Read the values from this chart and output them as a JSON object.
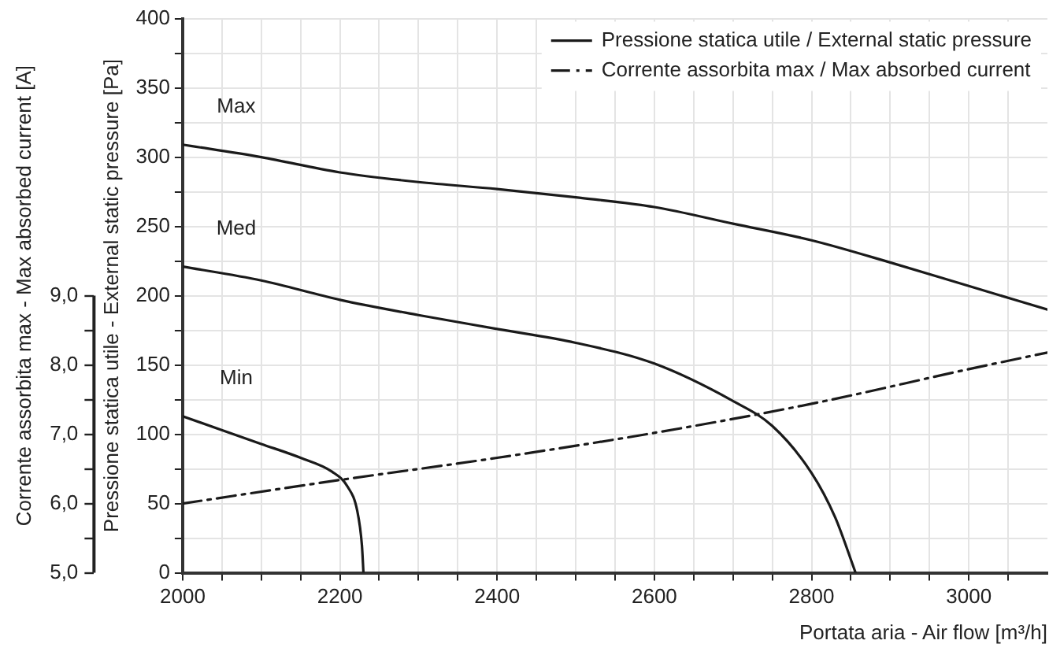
{
  "chart_data": {
    "type": "line",
    "xlabel": "Portata aria - Air flow [m³/h]",
    "ylabel": "Pressione statica utile - External static pressure [Pa]",
    "y2label": "Corrente assorbita max - Max absorbed current [A]",
    "xlim": [
      2000,
      3100
    ],
    "xticks": [
      2000,
      {
        "value": 2050,
        "label": null
      },
      {
        "value": 2100,
        "label": null
      },
      {
        "value": 2150,
        "label": null
      },
      2200,
      {
        "value": 2250,
        "label": null
      },
      {
        "value": 2300,
        "label": null
      },
      {
        "value": 2350,
        "label": null
      },
      2400,
      {
        "value": 2450,
        "label": null
      },
      {
        "value": 2500,
        "label": null
      },
      {
        "value": 2550,
        "label": null
      },
      2600,
      {
        "value": 2650,
        "label": null
      },
      {
        "value": 2700,
        "label": null
      },
      {
        "value": 2750,
        "label": null
      },
      2800,
      {
        "value": 2850,
        "label": null
      },
      {
        "value": 2900,
        "label": null
      },
      {
        "value": 2950,
        "label": null
      },
      3000,
      {
        "value": 3050,
        "label": null
      }
    ],
    "ylim": [
      0,
      400
    ],
    "yticks": [
      0,
      {
        "value": 25,
        "label": null
      },
      50,
      {
        "value": 75,
        "label": null
      },
      100,
      {
        "value": 125,
        "label": null
      },
      150,
      {
        "value": 175,
        "label": null
      },
      200,
      {
        "value": 225,
        "label": null
      },
      250,
      {
        "value": 275,
        "label": null
      },
      300,
      {
        "value": 325,
        "label": null
      },
      350,
      {
        "value": 375,
        "label": null
      },
      400
    ],
    "y2lim": [
      5,
      13
    ],
    "y2ticks": [
      {
        "value": 5,
        "label": "5,0"
      },
      {
        "value": 5.5,
        "label": null
      },
      {
        "value": 6,
        "label": "6,0"
      },
      {
        "value": 6.5,
        "label": null
      },
      {
        "value": 7,
        "label": "7,0"
      },
      {
        "value": 7.5,
        "label": null
      },
      {
        "value": 8,
        "label": "8,0"
      },
      {
        "value": 8.5,
        "label": null
      },
      {
        "value": 9,
        "label": "9,0"
      }
    ],
    "grid": true,
    "legend": "top right",
    "marker": "none",
    "series": [
      {
        "name": "Pressione statica utile / External static pressure",
        "color": "#1a1a1a",
        "line_style": "solid",
        "x": [
          2000,
          2100,
          2200,
          2300,
          2400,
          2500,
          2600,
          2700,
          2800,
          2900,
          3000,
          3100
        ],
        "values": [
          309,
          300,
          289,
          282,
          277,
          271,
          264,
          252,
          240,
          224,
          207,
          190
        ]
      },
      {
        "color": "#1a1a1a",
        "line_style": "solid",
        "x": [
          2000,
          2100,
          2200,
          2300,
          2400,
          2500,
          2600,
          2700,
          2750,
          2800,
          2830,
          2856
        ],
        "values": [
          221,
          211,
          197,
          186,
          176,
          166,
          151,
          124,
          106,
          72,
          40,
          0
        ]
      },
      {
        "color": "#1a1a1a",
        "line_style": "solid",
        "x": [
          2000,
          2100,
          2150,
          2190,
          2210,
          2222,
          2228,
          2230
        ],
        "values": [
          113,
          93,
          83,
          73,
          62,
          45,
          20,
          0
        ]
      },
      {
        "name": "Corrente assorbita max / Max absorbed current",
        "color": "#1a1a1a",
        "line_style": "dashed",
        "axis": "y2",
        "x": [
          2000,
          2200,
          2400,
          2600,
          2800,
          3000,
          3100
        ],
        "values": [
          6.0,
          6.34,
          6.66,
          7.02,
          7.44,
          7.94,
          8.18
        ]
      }
    ],
    "annotations": [
      "Max",
      "Med",
      "Min"
    ]
  }
}
